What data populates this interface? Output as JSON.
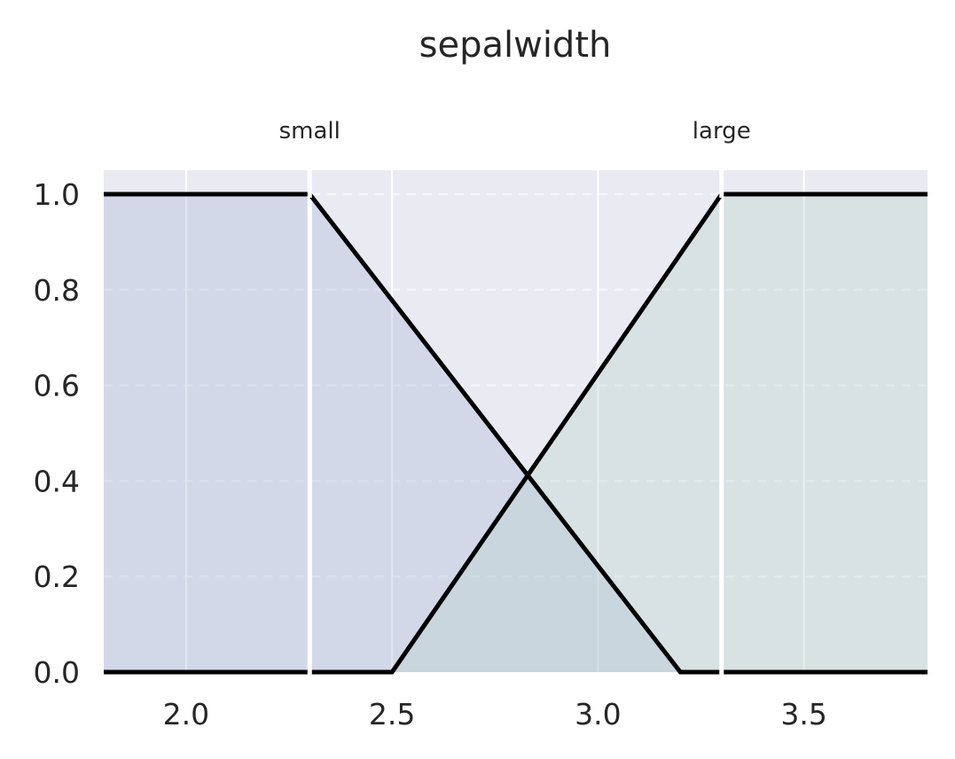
{
  "chart_data": {
    "type": "line",
    "title": "sepalwidth",
    "xlabel": "",
    "ylabel": "",
    "xlim": [
      1.8,
      3.8
    ],
    "ylim": [
      0.0,
      1.05
    ],
    "x_ticks": [
      2.0,
      2.5,
      3.0,
      3.5
    ],
    "x_tick_labels": [
      "2.0",
      "2.5",
      "3.0",
      "3.5"
    ],
    "y_ticks": [
      0.0,
      0.2,
      0.4,
      0.6,
      0.8,
      1.0
    ],
    "y_tick_labels": [
      "0.0",
      "0.2",
      "0.4",
      "0.6",
      "0.8",
      "1.0"
    ],
    "grid": true,
    "region_boundaries": [
      2.3,
      3.3
    ],
    "series": [
      {
        "name": "small",
        "label_x": 2.3,
        "fill": "#a9b8d8",
        "points": [
          [
            1.8,
            1.0
          ],
          [
            2.3,
            1.0
          ],
          [
            3.2,
            0.0
          ],
          [
            3.8,
            0.0
          ]
        ]
      },
      {
        "name": "large",
        "label_x": 3.3,
        "fill": "#b9d3c8",
        "points": [
          [
            1.8,
            0.0
          ],
          [
            2.5,
            0.0
          ],
          [
            3.3,
            1.0
          ],
          [
            3.8,
            1.0
          ]
        ]
      }
    ]
  }
}
